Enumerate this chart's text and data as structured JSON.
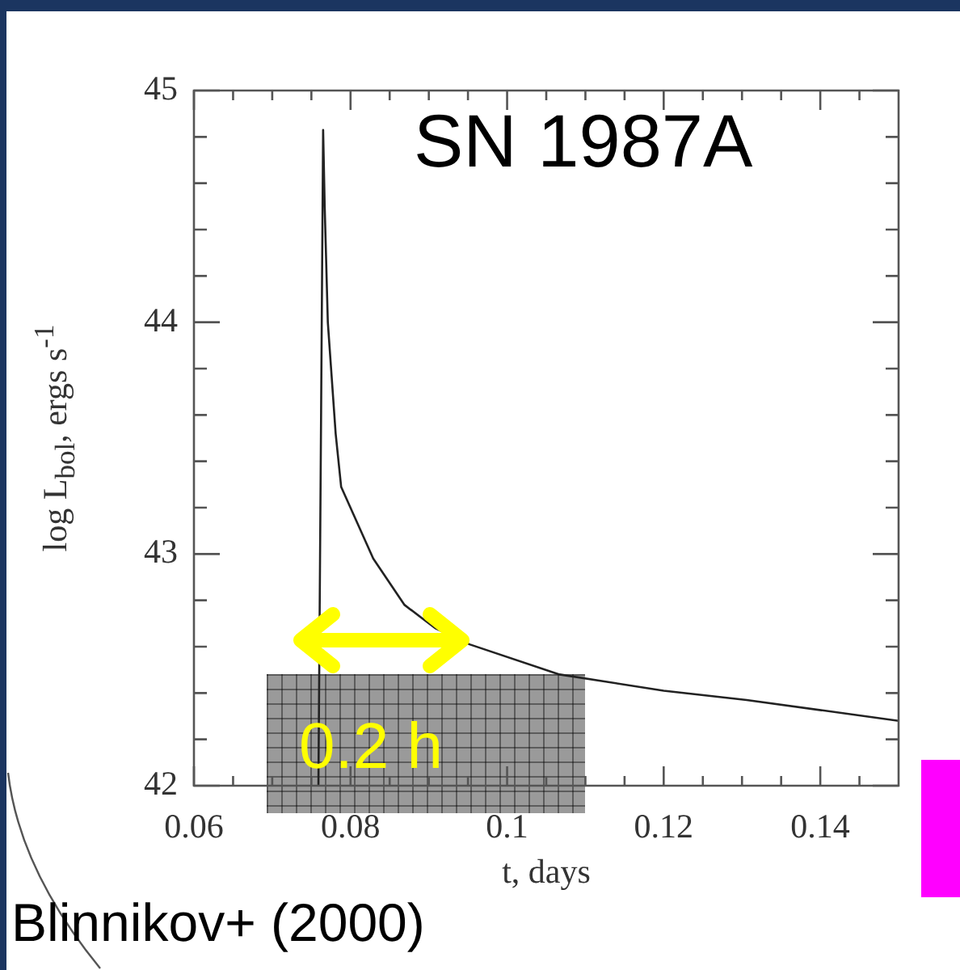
{
  "chart_data": {
    "type": "line",
    "title": "SN 1987A",
    "xlabel": "t, days",
    "ylabel": "log L$_{bol}$, ergs s$^{-1}$",
    "annotations": [
      "0.2 h",
      "Blinnikov+ (2000)"
    ],
    "x": [
      0.0759,
      0.0765,
      0.0767,
      0.0771,
      0.0781,
      0.0788,
      0.0829,
      0.0869,
      0.0908,
      0.0952,
      0.1067,
      0.12,
      0.1306,
      0.15
    ],
    "values": [
      42,
      44.83,
      44.5,
      44.0,
      43.52,
      43.29,
      42.98,
      42.78,
      42.68,
      42.61,
      42.48,
      42.41,
      42.37,
      42.28
    ],
    "color": "#222222",
    "marker": "none",
    "line_style": "solid",
    "grid": false,
    "legend": false,
    "xlim": [
      0.06,
      0.15
    ],
    "ylim": [
      42,
      45
    ],
    "xticks": [
      0.06,
      {
        "value": 0.065,
        "label": null
      },
      {
        "value": 0.07,
        "label": null
      },
      {
        "value": 0.075,
        "label": null
      },
      0.08,
      {
        "value": 0.085,
        "label": null
      },
      {
        "value": 0.09,
        "label": null
      },
      {
        "value": 0.095,
        "label": null
      },
      {
        "value": 0.1,
        "label": "0.1"
      },
      {
        "value": 0.105,
        "label": null
      },
      {
        "value": 0.11,
        "label": null
      },
      {
        "value": 0.115,
        "label": null
      },
      0.12,
      {
        "value": 0.125,
        "label": null
      },
      {
        "value": 0.13,
        "label": null
      },
      {
        "value": 0.135,
        "label": null
      },
      0.14,
      {
        "value": 0.145,
        "label": null
      }
    ],
    "yticks": [
      42,
      {
        "value": 42.2,
        "label": null
      },
      {
        "value": 42.4,
        "label": null
      },
      {
        "value": 42.6,
        "label": null
      },
      {
        "value": 42.8,
        "label": null
      },
      43,
      {
        "value": 43.2,
        "label": null
      },
      {
        "value": 43.4,
        "label": null
      },
      {
        "value": 43.6,
        "label": null
      },
      {
        "value": 43.8,
        "label": null
      },
      44,
      {
        "value": 44.2,
        "label": null
      },
      {
        "value": 44.4,
        "label": null
      },
      {
        "value": 44.6,
        "label": null
      },
      {
        "value": 44.8,
        "label": null
      },
      45
    ]
  }
}
